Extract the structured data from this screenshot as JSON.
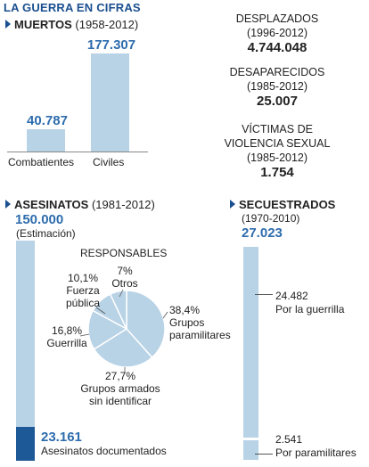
{
  "title": "LA GUERRA EN CIFRAS",
  "muertos": {
    "heading": "MUERTOS",
    "period": "(1958-2012)",
    "chart_data": {
      "type": "bar",
      "categories": [
        "Combatientes",
        "Civiles"
      ],
      "values": [
        40787,
        177307
      ],
      "value_labels": [
        "40.787",
        "177.307"
      ]
    }
  },
  "desplazados": {
    "heading": "DESPLAZADOS",
    "period": "(1996-2012)",
    "value": "4.744.048"
  },
  "desaparecidos": {
    "heading": "DESAPARECIDOS",
    "period": "(1985-2012)",
    "value": "25.007"
  },
  "victimas": {
    "heading_line1": "VÍCTIMAS DE",
    "heading_line2": "VIOLENCIA SEXUAL",
    "period": "(1985-2012)",
    "value": "1.754"
  },
  "asesinatos": {
    "heading": "ASESINATOS",
    "period": "(1981-2012)",
    "total": "150.000",
    "total_note": "(Estimación)",
    "documented_value": "23.161",
    "documented_label": "Asesinatos documentados",
    "total_numeric": 150000,
    "documented_numeric": 23161
  },
  "responsables": {
    "title": "RESPONSABLES",
    "chart_data": {
      "type": "pie",
      "slices": [
        {
          "pct": 38.4,
          "pct_label": "38,4%",
          "label_lines": [
            "Grupos",
            "paramilitares"
          ]
        },
        {
          "pct": 27.7,
          "pct_label": "27,7%",
          "label_lines": [
            "Grupos armados",
            "sin identificar"
          ]
        },
        {
          "pct": 16.8,
          "pct_label": "16,8%",
          "label_lines": [
            "Guerrilla"
          ]
        },
        {
          "pct": 10.1,
          "pct_label": "10,1%",
          "label_lines": [
            "Fuerza",
            "pública"
          ]
        },
        {
          "pct": 7,
          "pct_label": "7%",
          "label_lines": [
            "Otros"
          ]
        }
      ]
    }
  },
  "secuestrados": {
    "heading": "SECUESTRADOS",
    "period": "(1970-2010)",
    "total": "27.023",
    "guerrilla_value": "24.482",
    "guerrilla_label": "Por la guerrilla",
    "paramilitares_value": "2.541",
    "paramilitares_label": "Por paramilitares",
    "total_numeric": 27023,
    "guerrilla_numeric": 24482,
    "paramilitares_numeric": 2541
  },
  "colors": {
    "light_bar": "#b8d2e6",
    "dark_bar": "#1d5996",
    "accent": "#1b4f8f",
    "pie_fill": "#b8d2e6",
    "pie_stroke": "#ffffff"
  }
}
